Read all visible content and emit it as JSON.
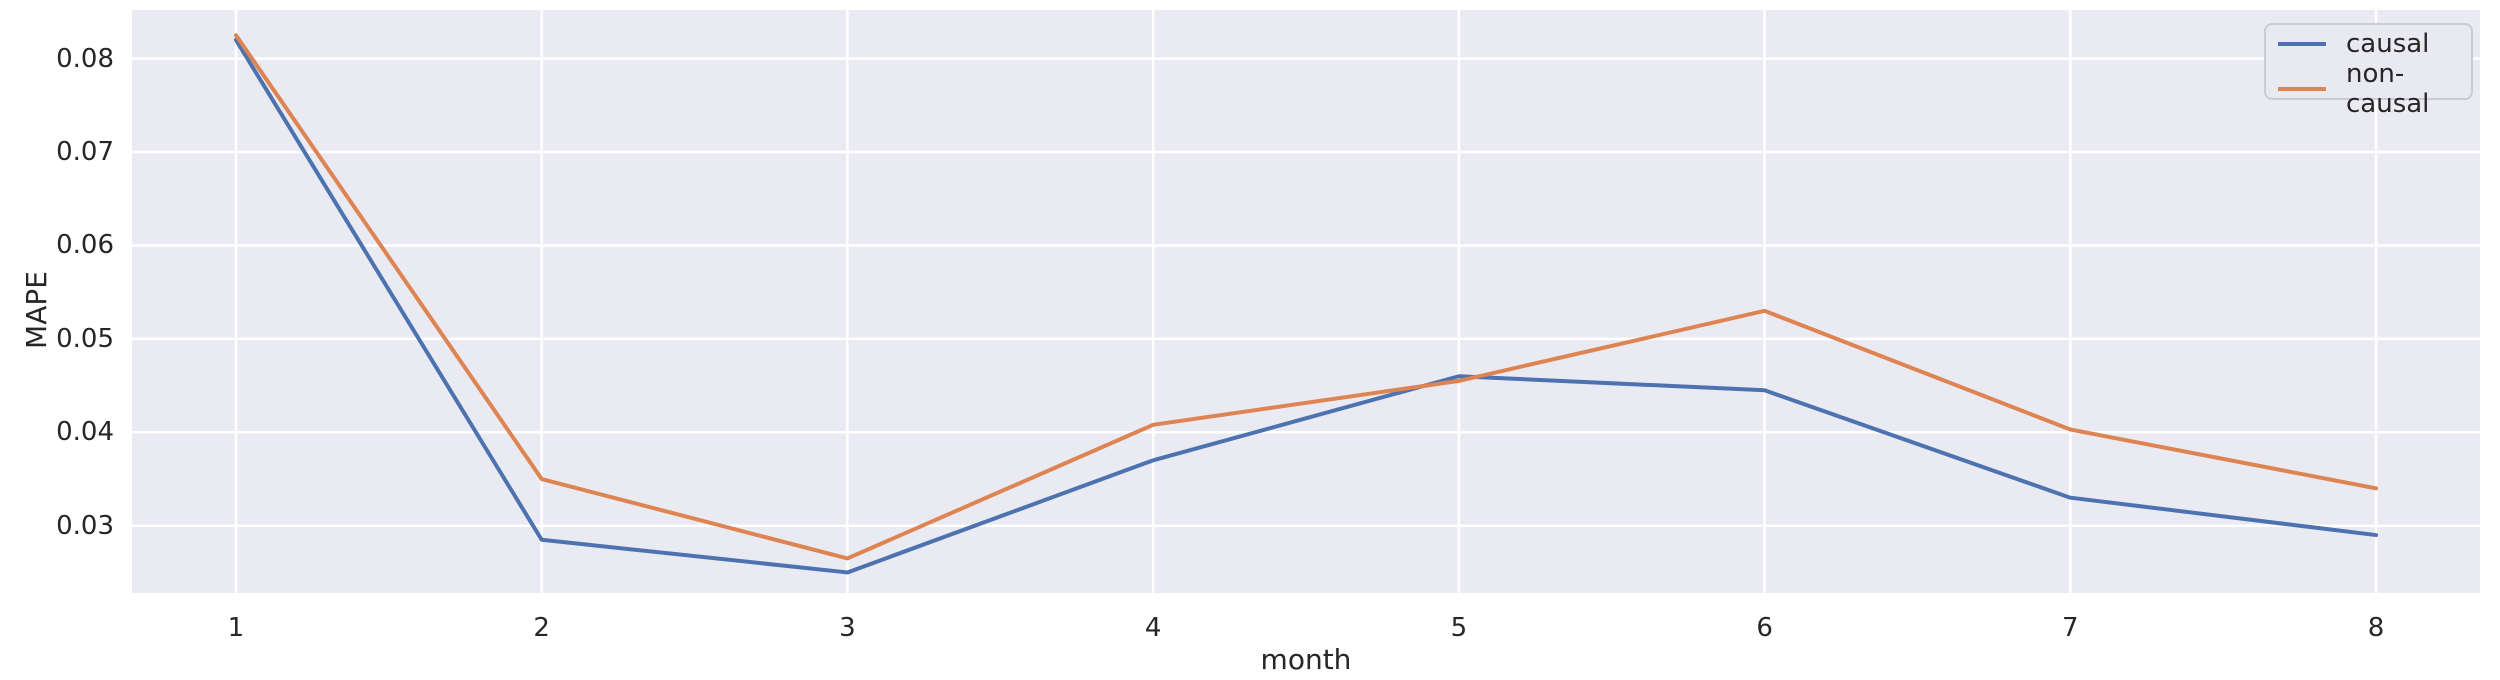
{
  "chart_data": {
    "type": "line",
    "title": "",
    "xlabel": "month",
    "ylabel": "MAPE",
    "x": [
      1,
      2,
      3,
      4,
      5,
      6,
      7,
      8
    ],
    "series": [
      {
        "name": "causal",
        "color": "#4c72b0",
        "values": [
          0.082,
          0.0285,
          0.025,
          0.037,
          0.046,
          0.0445,
          0.033,
          0.029
        ]
      },
      {
        "name": "non-causal",
        "color": "#dd8452",
        "values": [
          0.0825,
          0.035,
          0.0265,
          0.0408,
          0.0455,
          0.053,
          0.0403,
          0.034
        ]
      }
    ],
    "xlim": [
      0.66,
      8.34
    ],
    "ylim": [
      0.0228,
      0.0852
    ],
    "xticks": {
      "values": [
        1,
        2,
        3,
        4,
        5,
        6,
        7,
        8
      ],
      "labels": [
        "1",
        "2",
        "3",
        "4",
        "5",
        "6",
        "7",
        "8"
      ]
    },
    "yticks": {
      "values": [
        0.03,
        0.04,
        0.05,
        0.06,
        0.07,
        0.08
      ],
      "labels": [
        "0.03",
        "0.04",
        "0.05",
        "0.06",
        "0.07",
        "0.08"
      ]
    },
    "grid": true,
    "legend_position": "upper right",
    "line_width": 4,
    "colors": {
      "figure_background": "#ffffff",
      "plot_background": "#eaeaf2",
      "grid": "#ffffff",
      "text": "#262626",
      "legend_background": "#e9e9f1",
      "legend_border": "#cbcbd6"
    }
  }
}
